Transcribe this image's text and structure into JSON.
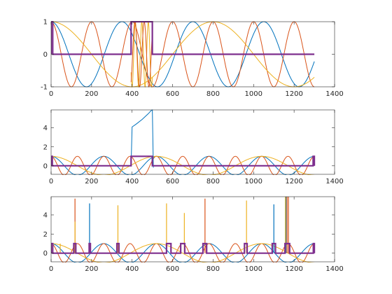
{
  "chart_data": [
    {
      "type": "line",
      "xlim": [
        0,
        1400
      ],
      "ylim": [
        -1,
        1
      ],
      "xticks": [
        0,
        200,
        400,
        600,
        800,
        1000,
        1200,
        1400
      ],
      "yticks": [
        -1,
        0,
        1
      ],
      "xtick_labels": [
        "0",
        "200",
        "400",
        "600",
        "800",
        "1000",
        "1200",
        "1400"
      ],
      "ytick_labels": [
        "-1",
        "0",
        "1"
      ],
      "grid": false,
      "series": [
        {
          "color": "#0072BD",
          "kind": "cos",
          "period": 350,
          "amp": 1,
          "x_range": [
            0,
            1300
          ]
        },
        {
          "color": "#D95319",
          "kind": "cos",
          "period": 200,
          "amp": 1,
          "x_range": [
            0,
            1300
          ]
        },
        {
          "color": "#EDB120",
          "kind": "cos",
          "period": 800,
          "amp": 1,
          "x_range": [
            0,
            1300
          ]
        },
        {
          "color": "#EDB120",
          "kind": "cos",
          "period": 32,
          "amp": 1,
          "x_range": [
            395,
            500
          ]
        },
        {
          "color": "#D95319",
          "kind": "cos",
          "period": 46,
          "amp": 1,
          "x_range": [
            395,
            500
          ]
        },
        {
          "color": "#7E2F8E",
          "kind": "gate",
          "on": [
            [
              0,
              8
            ],
            [
              395,
              500
            ]
          ],
          "x_end": 1300
        }
      ]
    },
    {
      "type": "line",
      "xlim": [
        0,
        1400
      ],
      "ylim": [
        -0.9,
        5.9
      ],
      "xticks": [
        0,
        200,
        400,
        600,
        800,
        1000,
        1200,
        1400
      ],
      "yticks": [
        0,
        2,
        4
      ],
      "xtick_labels": [
        "0",
        "200",
        "400",
        "600",
        "800",
        "1000",
        "1200",
        "1400"
      ],
      "ytick_labels": [
        "0",
        "2",
        "4"
      ],
      "grid": false,
      "series": [
        {
          "color": "#0072BD",
          "kind": "cos",
          "period": 260,
          "amp": 1,
          "x_range": [
            0,
            1300
          ]
        },
        {
          "color": "#D95319",
          "kind": "cos",
          "period": 130,
          "amp": 1,
          "x_range": [
            0,
            1300
          ]
        },
        {
          "color": "#EDB120",
          "kind": "cos",
          "period": 520,
          "amp": 1,
          "x_range": [
            0,
            1300
          ]
        },
        {
          "color": "#0072BD",
          "kind": "points",
          "points": [
            [
              395,
              0
            ],
            [
              400,
              4.1
            ],
            [
              420,
              4.4
            ],
            [
              450,
              4.9
            ],
            [
              480,
              5.5
            ],
            [
              495,
              5.85
            ],
            [
              500,
              5.9
            ],
            [
              505,
              -0.2
            ]
          ]
        },
        {
          "color": "#7E2F8E",
          "kind": "gate",
          "on": [
            [
              0,
              6
            ],
            [
              395,
              500
            ],
            [
              1294,
              1300
            ]
          ],
          "x_end": 1300
        }
      ]
    },
    {
      "type": "line",
      "xlim": [
        0,
        1400
      ],
      "ylim": [
        -0.9,
        5.9
      ],
      "xticks": [
        0,
        200,
        400,
        600,
        800,
        1000,
        1200,
        1400
      ],
      "yticks": [
        0,
        2,
        4
      ],
      "xtick_labels": [
        "0",
        "200",
        "400",
        "600",
        "800",
        "1000",
        "1200",
        "1400"
      ],
      "ytick_labels": [
        "0",
        "2",
        "4"
      ],
      "grid": false,
      "series": [
        {
          "color": "#0072BD",
          "kind": "cos",
          "period": 260,
          "amp": 1,
          "x_range": [
            0,
            1300
          ]
        },
        {
          "color": "#D95319",
          "kind": "cos",
          "period": 130,
          "amp": 1,
          "x_range": [
            0,
            1300
          ]
        },
        {
          "color": "#EDB120",
          "kind": "cos",
          "period": 520,
          "amp": 1,
          "x_range": [
            0,
            1300
          ]
        },
        {
          "color": "#D95319",
          "kind": "spikes",
          "spikes": [
            [
              118,
              5.7
            ],
            [
              760,
              5.7
            ],
            [
              1165,
              5.9
            ],
            [
              1172,
              5.9
            ]
          ]
        },
        {
          "color": "#0072BD",
          "kind": "spikes",
          "spikes": [
            [
              190,
              5.2
            ],
            [
              1100,
              5.1
            ],
            [
              1160,
              5.9
            ]
          ]
        },
        {
          "color": "#EDB120",
          "kind": "spikes",
          "spikes": [
            [
              45,
              1.0
            ],
            [
              118,
              3.3
            ],
            [
              330,
              5.0
            ],
            [
              570,
              5.2
            ],
            [
              658,
              4.2
            ],
            [
              965,
              5.5
            ],
            [
              1157,
              5.9
            ]
          ]
        },
        {
          "color": "#7E2F8E",
          "kind": "gate",
          "on": [
            [
              0,
              8
            ],
            [
              112,
              122
            ],
            [
              188,
              194
            ],
            [
              325,
              335
            ],
            [
              570,
              592
            ],
            [
              640,
              660
            ],
            [
              750,
              768
            ],
            [
              955,
              968
            ],
            [
              1092,
              1108
            ],
            [
              1155,
              1178
            ],
            [
              1295,
              1300
            ]
          ],
          "x_end": 1300
        }
      ]
    }
  ]
}
